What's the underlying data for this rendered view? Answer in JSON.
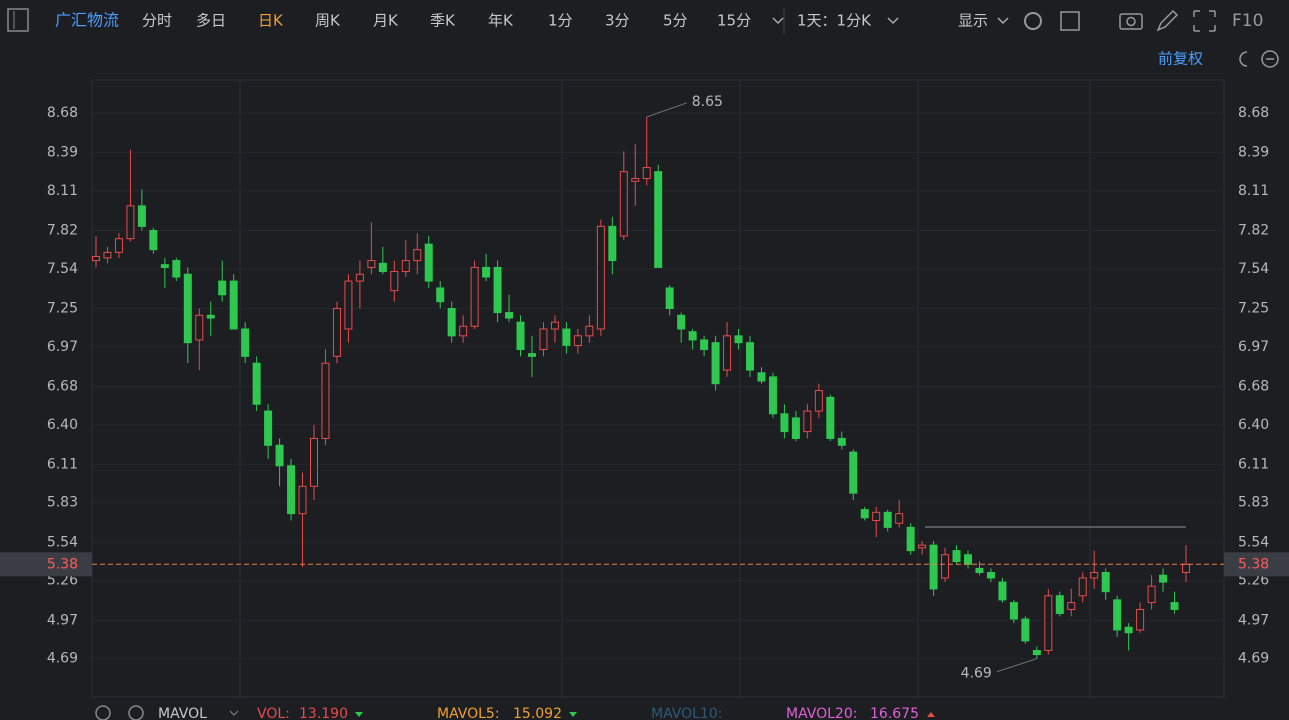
{
  "toolbar": {
    "stock": "广汇物流",
    "tabs": [
      "分时",
      "多日",
      "日K",
      "周K",
      "月K",
      "季K",
      "年K",
      "1分",
      "3分",
      "5分",
      "15分"
    ],
    "active_tab": 2,
    "period": "1天：1分K",
    "display": "显示",
    "f10": "F10",
    "adjust": "前复权"
  },
  "indicators": [
    {
      "name": "MAVOL",
      "color": "#c8c8c8"
    },
    {
      "name": "VOL:",
      "value": "13.190",
      "color": "#e84b4b"
    },
    {
      "name": "MAVOL5:",
      "value": "15.092",
      "color": "#f0a030"
    },
    {
      "name": "MAVOL10:",
      "color": "#2d5a78"
    },
    {
      "name": "MAVOL20:",
      "value": "16.675",
      "color": "#e060d8"
    }
  ],
  "chart_data": {
    "type": "candlestick",
    "up_color": "#e84b4b",
    "down_color": "#2ec850",
    "ylim": [
      4.41,
      8.92
    ],
    "yticks": [
      8.68,
      8.39,
      8.11,
      7.82,
      7.54,
      7.25,
      6.97,
      6.68,
      {
        "value": 6.4,
        "label": "6.40"
      },
      6.11,
      5.83,
      5.54,
      5.26,
      4.97,
      4.69
    ],
    "max_label": 8.65,
    "min_label": 4.69,
    "last_price": 5.38,
    "series": {
      "open": [
        7.6,
        7.62,
        7.66,
        7.76,
        8.0,
        7.82,
        7.57,
        7.6,
        7.5,
        7.02,
        7.2,
        7.45,
        7.45,
        7.1,
        6.85,
        6.5,
        6.25,
        6.1,
        5.75,
        5.95,
        6.3,
        6.9,
        7.1,
        7.45,
        7.55,
        7.58,
        7.38,
        7.52,
        7.6,
        7.72,
        7.4,
        7.25,
        7.05,
        7.12,
        7.55,
        7.55,
        7.22,
        7.15,
        6.92,
        6.95,
        7.1,
        7.1,
        6.98,
        7.05,
        7.1,
        7.85,
        7.78,
        8.18,
        8.2,
        8.25,
        7.4,
        7.2,
        7.08,
        7.02,
        7.0,
        6.8,
        7.05,
        7.0,
        6.78,
        6.75,
        6.48,
        6.45,
        6.35,
        6.5,
        6.6,
        6.3,
        6.2,
        5.78,
        5.7,
        5.76,
        5.68,
        5.65,
        5.5,
        5.52,
        5.28,
        5.48,
        5.45,
        5.35,
        5.32,
        5.25,
        5.1,
        4.98,
        4.75,
        4.75,
        5.15,
        5.05,
        5.15,
        5.28,
        5.32,
        5.12,
        4.92,
        4.9,
        5.1,
        5.3,
        5.1,
        5.32
      ],
      "high": [
        7.78,
        7.7,
        7.8,
        8.41,
        8.12,
        7.84,
        7.62,
        7.62,
        7.55,
        7.25,
        7.3,
        7.6,
        7.5,
        7.15,
        6.9,
        6.55,
        6.3,
        6.15,
        6.05,
        6.4,
        6.95,
        7.3,
        7.5,
        7.6,
        7.88,
        7.7,
        7.6,
        7.75,
        7.8,
        7.78,
        7.45,
        7.3,
        7.2,
        7.6,
        7.65,
        7.6,
        7.35,
        7.2,
        7.05,
        7.15,
        7.2,
        7.15,
        7.1,
        7.2,
        7.9,
        7.92,
        8.4,
        8.45,
        8.65,
        8.3,
        7.42,
        7.22,
        7.1,
        7.05,
        7.05,
        7.15,
        7.1,
        7.05,
        6.82,
        6.78,
        6.55,
        6.5,
        6.55,
        6.7,
        6.62,
        6.35,
        6.22,
        5.8,
        5.8,
        5.78,
        5.85,
        5.68,
        5.55,
        5.55,
        5.5,
        5.52,
        5.48,
        5.4,
        5.35,
        5.28,
        5.12,
        5.0,
        4.78,
        5.2,
        5.18,
        5.2,
        5.32,
        5.48,
        5.35,
        5.15,
        4.95,
        5.1,
        5.3,
        5.35,
        5.18,
        5.52
      ],
      "low": [
        7.55,
        7.58,
        7.62,
        7.74,
        7.82,
        7.65,
        7.4,
        7.45,
        6.85,
        6.8,
        7.05,
        7.3,
        7.1,
        6.85,
        6.5,
        6.15,
        5.95,
        5.7,
        5.36,
        5.85,
        6.25,
        6.85,
        7.0,
        7.25,
        7.5,
        7.5,
        7.3,
        7.48,
        7.5,
        7.4,
        7.25,
        7.0,
        7.0,
        7.1,
        7.45,
        7.15,
        7.15,
        6.9,
        6.75,
        6.9,
        7.0,
        6.92,
        6.92,
        7.0,
        7.05,
        7.5,
        7.75,
        8.0,
        8.15,
        7.55,
        7.2,
        7.0,
        6.95,
        6.9,
        6.65,
        6.75,
        6.95,
        6.75,
        6.7,
        6.45,
        6.3,
        6.28,
        6.3,
        6.45,
        6.28,
        6.22,
        5.85,
        5.7,
        5.58,
        5.62,
        5.65,
        5.45,
        5.45,
        5.15,
        5.25,
        5.38,
        5.35,
        5.3,
        5.25,
        5.1,
        4.95,
        4.8,
        4.69,
        4.72,
        5.0,
        5.0,
        5.1,
        5.2,
        5.12,
        4.85,
        4.75,
        4.88,
        5.05,
        5.18,
        5.02,
        5.25
      ],
      "close": [
        7.63,
        7.66,
        7.76,
        8.0,
        7.85,
        7.68,
        7.55,
        7.48,
        7.0,
        7.2,
        7.18,
        7.35,
        7.1,
        6.9,
        6.55,
        6.25,
        6.1,
        5.75,
        5.95,
        6.3,
        6.85,
        7.25,
        7.45,
        7.5,
        7.6,
        7.52,
        7.52,
        7.6,
        7.68,
        7.45,
        7.3,
        7.05,
        7.12,
        7.55,
        7.48,
        7.22,
        7.18,
        6.95,
        6.9,
        7.1,
        7.15,
        6.98,
        7.05,
        7.12,
        7.85,
        7.6,
        8.25,
        8.2,
        8.28,
        7.55,
        7.25,
        7.1,
        7.02,
        6.95,
        6.7,
        7.05,
        7.0,
        6.8,
        6.72,
        6.48,
        6.35,
        6.3,
        6.5,
        6.65,
        6.3,
        6.25,
        5.9,
        5.72,
        5.76,
        5.65,
        5.75,
        5.48,
        5.52,
        5.2,
        5.45,
        5.4,
        5.38,
        5.32,
        5.28,
        5.12,
        4.98,
        4.82,
        4.72,
        5.15,
        5.02,
        5.1,
        5.28,
        5.32,
        5.18,
        4.9,
        4.88,
        5.05,
        5.22,
        5.25,
        5.05,
        5.38
      ]
    }
  }
}
